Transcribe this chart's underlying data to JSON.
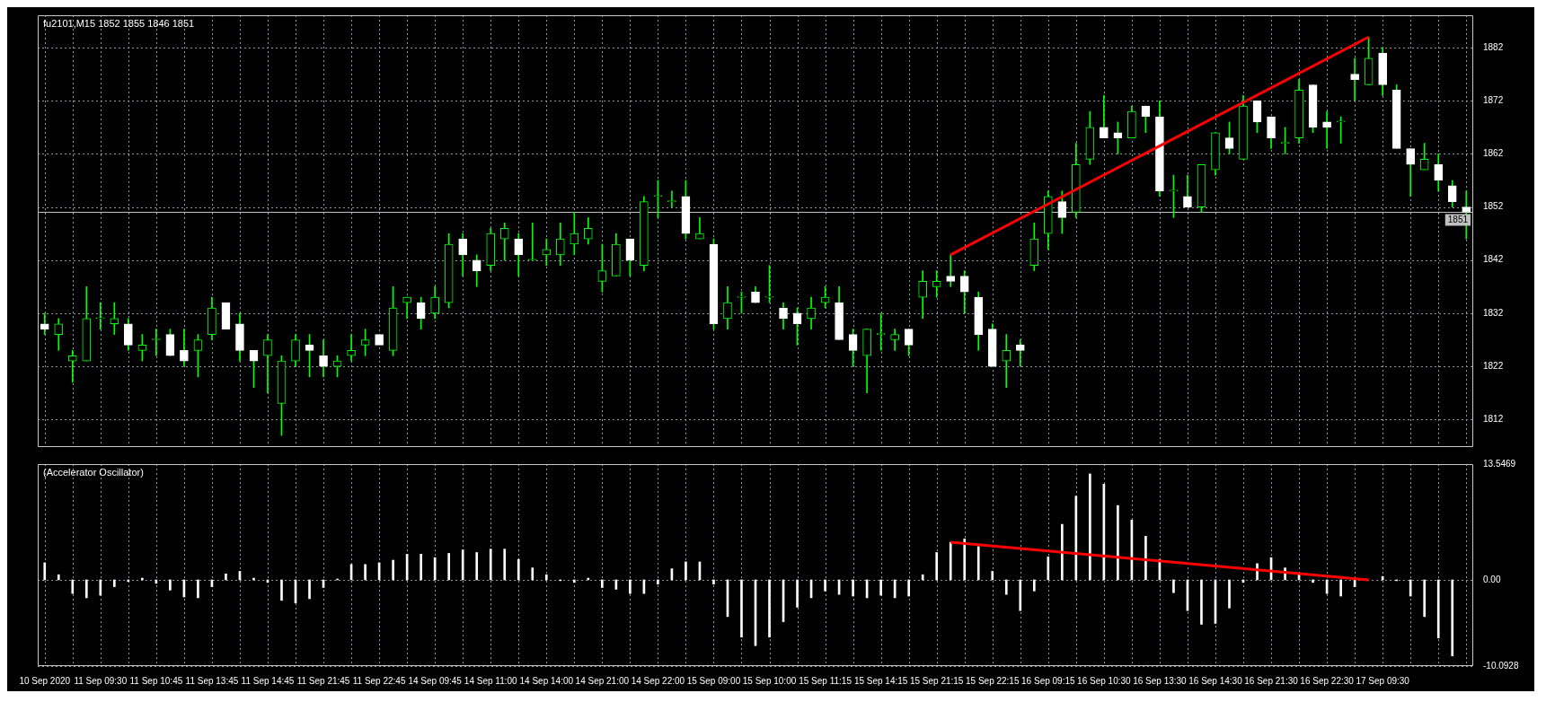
{
  "chart_data": [
    {
      "type": "candlestick",
      "title": "fu2101,M15 1852 1855 1846 1851",
      "tick_labels": "y",
      "grid": true,
      "color": "#00ff00",
      "ohlc": [
        [
          1830,
          1832,
          1828,
          1829
        ],
        [
          1828,
          1831,
          1825,
          1830
        ],
        [
          1823,
          1825,
          1819,
          1824
        ],
        [
          1823,
          1837,
          1823,
          1831
        ],
        [
          1831,
          1834,
          1829,
          1831
        ],
        [
          1830,
          1834,
          1828,
          1831
        ],
        [
          1830,
          1831,
          1825,
          1826
        ],
        [
          1825,
          1828,
          1823,
          1826
        ],
        [
          1827,
          1829,
          1824,
          1827
        ],
        [
          1828,
          1829,
          1824,
          1824
        ],
        [
          1825,
          1829,
          1822,
          1823
        ],
        [
          1825,
          1828,
          1820,
          1827
        ],
        [
          1828,
          1835,
          1827,
          1833
        ],
        [
          1834,
          1834,
          1829,
          1829
        ],
        [
          1830,
          1832,
          1823,
          1825
        ],
        [
          1825,
          1825,
          1818,
          1823
        ],
        [
          1824,
          1828,
          1817,
          1827
        ],
        [
          1815,
          1824,
          1809,
          1823
        ],
        [
          1823,
          1828,
          1822,
          1827
        ],
        [
          1826,
          1828,
          1820,
          1825
        ],
        [
          1824,
          1827,
          1820,
          1822
        ],
        [
          1822,
          1824,
          1820,
          1823
        ],
        [
          1824,
          1828,
          1823,
          1825
        ],
        [
          1826,
          1829,
          1824,
          1827
        ],
        [
          1828,
          1828,
          1826,
          1826
        ],
        [
          1825,
          1837,
          1824,
          1833
        ],
        [
          1834,
          1835,
          1831,
          1835
        ],
        [
          1834,
          1835,
          1829,
          1831
        ],
        [
          1832,
          1837,
          1831,
          1835
        ],
        [
          1834,
          1847,
          1833,
          1845
        ],
        [
          1846,
          1847,
          1839,
          1843
        ],
        [
          1842,
          1843,
          1837,
          1840
        ],
        [
          1841,
          1848,
          1840,
          1847
        ],
        [
          1846,
          1849,
          1842,
          1848
        ],
        [
          1846,
          1847,
          1839,
          1843
        ],
        [
          1842,
          1849,
          1842,
          1842
        ],
        [
          1843,
          1846,
          1841,
          1844
        ],
        [
          1843,
          1849,
          1841,
          1846
        ],
        [
          1845,
          1851,
          1843,
          1847
        ],
        [
          1846,
          1850,
          1845,
          1848
        ],
        [
          1838,
          1845,
          1836,
          1840
        ],
        [
          1839,
          1847,
          1839,
          1845
        ],
        [
          1846,
          1846,
          1839,
          1842
        ],
        [
          1841,
          1854,
          1840,
          1853
        ],
        [
          1854,
          1857,
          1850,
          1854
        ],
        [
          1853,
          1855,
          1852,
          1853
        ],
        [
          1854,
          1857,
          1846,
          1847
        ],
        [
          1846,
          1850,
          1846,
          1847
        ],
        [
          1845,
          1846,
          1829,
          1830
        ],
        [
          1831,
          1837,
          1829,
          1834
        ],
        [
          1835,
          1836,
          1832,
          1835
        ],
        [
          1836,
          1837,
          1834,
          1834
        ],
        [
          1835,
          1841,
          1834,
          1835
        ],
        [
          1833,
          1834,
          1829,
          1831
        ],
        [
          1832,
          1833,
          1826,
          1830
        ],
        [
          1831,
          1835,
          1829,
          1833
        ],
        [
          1834,
          1837,
          1833,
          1835
        ],
        [
          1834,
          1837,
          1827,
          1827
        ],
        [
          1828,
          1829,
          1822,
          1825
        ],
        [
          1824,
          1829,
          1817,
          1829
        ],
        [
          1828,
          1832,
          1825,
          1828
        ],
        [
          1827,
          1829,
          1825,
          1828
        ],
        [
          1829,
          1829,
          1824,
          1826
        ],
        [
          1835,
          1840,
          1831,
          1838
        ],
        [
          1837,
          1840,
          1835,
          1838
        ],
        [
          1839,
          1843,
          1837,
          1838
        ],
        [
          1839,
          1840,
          1832,
          1836
        ],
        [
          1835,
          1836,
          1825,
          1828
        ],
        [
          1829,
          1830,
          1822,
          1822
        ],
        [
          1823,
          1828,
          1818,
          1825
        ],
        [
          1826,
          1827,
          1822,
          1825
        ],
        [
          1841,
          1849,
          1840,
          1846
        ],
        [
          1847,
          1855,
          1844,
          1854
        ],
        [
          1853,
          1855,
          1847,
          1850
        ],
        [
          1851,
          1864,
          1850,
          1860
        ],
        [
          1861,
          1870,
          1860,
          1867
        ],
        [
          1867,
          1873,
          1865,
          1865
        ],
        [
          1866,
          1868,
          1862,
          1865
        ],
        [
          1865,
          1871,
          1865,
          1870
        ],
        [
          1871,
          1871,
          1866,
          1869
        ],
        [
          1869,
          1872,
          1854,
          1855
        ],
        [
          1855,
          1858,
          1850,
          1855
        ],
        [
          1854,
          1858,
          1852,
          1852
        ],
        [
          1852,
          1860,
          1851,
          1860
        ],
        [
          1859,
          1866,
          1858,
          1866
        ],
        [
          1865,
          1868,
          1862,
          1863
        ],
        [
          1861,
          1873,
          1861,
          1871
        ],
        [
          1872,
          1872,
          1866,
          1868
        ],
        [
          1869,
          1869,
          1863,
          1865
        ],
        [
          1864,
          1867,
          1862,
          1864
        ],
        [
          1865,
          1876,
          1864,
          1874
        ],
        [
          1875,
          1875,
          1866,
          1867
        ],
        [
          1868,
          1870,
          1863,
          1867
        ],
        [
          1868,
          1869,
          1864,
          1868
        ],
        [
          1877,
          1880,
          1872,
          1876
        ],
        [
          1875,
          1884,
          1875,
          1880
        ],
        [
          1881,
          1882,
          1873,
          1875
        ],
        [
          1874,
          1875,
          1863,
          1863
        ],
        [
          1863,
          1863,
          1854,
          1860
        ],
        [
          1859,
          1864,
          1859,
          1861
        ],
        [
          1860,
          1862,
          1855,
          1857
        ],
        [
          1856,
          1857,
          1852,
          1853
        ],
        [
          1852,
          1855,
          1846,
          1851
        ]
      ],
      "colors": [
        "#ffffff",
        "#00ff00",
        "#00ff00",
        "#00ff00",
        "#00ff00",
        "#00ff00",
        "#ffffff",
        "#00ff00",
        "#00ff00",
        "#ffffff",
        "#ffffff",
        "#00ff00",
        "#00ff00",
        "#ffffff",
        "#ffffff",
        "#ffffff",
        "#00ff00",
        "#00ff00",
        "#00ff00",
        "#ffffff",
        "#ffffff",
        "#00ff00",
        "#00ff00",
        "#00ff00",
        "#ffffff",
        "#00ff00",
        "#00ff00",
        "#ffffff",
        "#00ff00",
        "#00ff00",
        "#ffffff",
        "#ffffff",
        "#00ff00",
        "#00ff00",
        "#ffffff",
        "#00ff00",
        "#00ff00",
        "#00ff00",
        "#00ff00",
        "#00ff00",
        "#00ff00",
        "#00ff00",
        "#ffffff",
        "#00ff00",
        "#00ff00",
        "#00ff00",
        "#ffffff",
        "#00ff00",
        "#ffffff",
        "#00ff00",
        "#00ff00",
        "#ffffff",
        "#00ff00",
        "#ffffff",
        "#ffffff",
        "#00ff00",
        "#00ff00",
        "#ffffff",
        "#ffffff",
        "#00ff00",
        "#00ff00",
        "#00ff00",
        "#ffffff",
        "#00ff00",
        "#00ff00",
        "#ffffff",
        "#ffffff",
        "#ffffff",
        "#ffffff",
        "#00ff00",
        "#ffffff",
        "#00ff00",
        "#00ff00",
        "#ffffff",
        "#00ff00",
        "#00ff00",
        "#ffffff",
        "#ffffff",
        "#00ff00",
        "#ffffff",
        "#ffffff",
        "#00ff00",
        "#ffffff",
        "#00ff00",
        "#00ff00",
        "#ffffff",
        "#00ff00",
        "#ffffff",
        "#ffffff",
        "#00ff00",
        "#00ff00",
        "#ffffff",
        "#ffffff",
        "#00ff00",
        "#ffffff",
        "#00ff00",
        "#ffffff",
        "#ffffff",
        "#ffffff",
        "#00ff00",
        "#ffffff",
        "#ffffff",
        "#ffffff"
      ],
      "series": [
        {
          "type": "line",
          "color": "#ff0000",
          "values": [
            null,
            null,
            null,
            null,
            null,
            null,
            null,
            null,
            null,
            null,
            null,
            null,
            null,
            null,
            null,
            null,
            null,
            null,
            null,
            null,
            null,
            null,
            null,
            null,
            null,
            null,
            null,
            null,
            null,
            null,
            null,
            null,
            null,
            null,
            null,
            null,
            null,
            null,
            null,
            null,
            null,
            null,
            null,
            null,
            null,
            null,
            null,
            null,
            null,
            null,
            null,
            null,
            null,
            null,
            null,
            null,
            null,
            null,
            null,
            null,
            null,
            null,
            null,
            null,
            null,
            1843,
            null,
            null,
            null,
            null,
            null,
            null,
            null,
            null,
            null,
            null,
            null,
            null,
            null,
            null,
            null,
            null,
            null,
            null,
            null,
            null,
            null,
            null,
            null,
            null,
            null,
            null,
            null,
            null,
            null,
            1884,
            null,
            null,
            null,
            null,
            null,
            null,
            null
          ]
        }
      ],
      "ylim": [
        1806.8,
        1888.1
      ],
      "yticks": [
        1812,
        1822,
        1832,
        1842,
        1852,
        1862,
        1872,
        1882
      ],
      "ref_lines": [
        {
          "axis": "y",
          "value": 1851,
          "label": "1851",
          "color": "#c0c0c0"
        }
      ]
    },
    {
      "type": "bar",
      "title": "(Accelerator Oscillator)",
      "grid": true,
      "categories": [
        "10 Sep 2020",
        null,
        null,
        null,
        "11 Sep 09:30",
        null,
        null,
        null,
        "11 Sep 10:45",
        null,
        null,
        null,
        "11 Sep 13:45",
        null,
        null,
        null,
        "11 Sep 14:45",
        null,
        null,
        null,
        "11 Sep 21:45",
        null,
        null,
        null,
        "11 Sep 22:45",
        null,
        null,
        null,
        "14 Sep 09:45",
        null,
        null,
        null,
        "14 Sep 11:00",
        null,
        null,
        null,
        "14 Sep 14:00",
        null,
        null,
        null,
        "14 Sep 21:00",
        null,
        null,
        null,
        "14 Sep 22:00",
        null,
        null,
        null,
        "15 Sep 09:00",
        null,
        null,
        null,
        "15 Sep 10:00",
        null,
        null,
        null,
        "15 Sep 11:15",
        null,
        null,
        null,
        "15 Sep 14:15",
        null,
        null,
        null,
        "15 Sep 21:15",
        null,
        null,
        null,
        "15 Sep 22:15",
        null,
        null,
        null,
        "16 Sep 09:15",
        null,
        null,
        null,
        "16 Sep 10:30",
        null,
        null,
        null,
        "16 Sep 13:30",
        null,
        null,
        null,
        "16 Sep 14:30",
        null,
        null,
        null,
        "16 Sep 21:30",
        null,
        null,
        null,
        "16 Sep 22:30",
        null,
        null,
        null,
        "17 Sep 09:30",
        null,
        null,
        null,
        null,
        null,
        null
      ],
      "series": [
        {
          "type": "bar",
          "color": "#ffffff",
          "values": [
            2.0,
            0.6,
            -1.6,
            -2.1,
            -1.8,
            -0.8,
            -0.2,
            0.2,
            -0.4,
            -1.2,
            -2.0,
            -2.1,
            -0.8,
            0.7,
            1.0,
            0.2,
            -0.3,
            -2.4,
            -2.7,
            -2.2,
            -0.9,
            0.1,
            1.8,
            1.8,
            2.0,
            2.3,
            3.0,
            3.0,
            2.6,
            3.1,
            3.5,
            3.2,
            3.6,
            3.6,
            2.4,
            1.4,
            0.6,
            -0.1,
            -0.3,
            0.2,
            -0.9,
            -1.1,
            -1.6,
            -1.6,
            -0.5,
            1.3,
            2.1,
            2.1,
            -0.5,
            -4.3,
            -6.7,
            -7.7,
            -6.7,
            -4.9,
            -3.2,
            -2.1,
            -1.3,
            -1.7,
            -1.9,
            -2.1,
            -1.8,
            -2.1,
            -1.9,
            0.6,
            3.2,
            4.4,
            4.8,
            3.9,
            1.0,
            -1.7,
            -3.6,
            -1.3,
            2.7,
            6.5,
            9.8,
            12.4,
            11.2,
            8.7,
            7.0,
            5.1,
            2.4,
            -1.5,
            -3.6,
            -5.2,
            -5.1,
            -3.3,
            -0.3,
            1.9,
            2.6,
            1.4,
            0.6,
            -0.3,
            -1.6,
            -1.9,
            -0.8,
            null,
            0.4,
            -0.1,
            -1.9,
            -4.3,
            -6.8,
            -8.9,
            null
          ]
        },
        {
          "type": "line",
          "color": "#ff0000",
          "values": [
            null,
            null,
            null,
            null,
            null,
            null,
            null,
            null,
            null,
            null,
            null,
            null,
            null,
            null,
            null,
            null,
            null,
            null,
            null,
            null,
            null,
            null,
            null,
            null,
            null,
            null,
            null,
            null,
            null,
            null,
            null,
            null,
            null,
            null,
            null,
            null,
            null,
            null,
            null,
            null,
            null,
            null,
            null,
            null,
            null,
            null,
            null,
            null,
            null,
            null,
            null,
            null,
            null,
            null,
            null,
            null,
            null,
            null,
            null,
            null,
            null,
            null,
            null,
            null,
            null,
            4.4,
            null,
            null,
            null,
            null,
            null,
            null,
            null,
            null,
            null,
            null,
            null,
            null,
            null,
            null,
            null,
            null,
            null,
            null,
            null,
            null,
            null,
            null,
            null,
            null,
            null,
            null,
            null,
            null,
            null,
            0,
            null,
            null,
            null,
            null,
            null,
            null,
            null
          ]
        }
      ],
      "ylim": [
        -10.0928,
        13.5469
      ],
      "yticks": [
        {
          "value": 13.5469,
          "label": "13.5469"
        },
        {
          "value": 0,
          "label": "0.00"
        },
        {
          "value": -10.0928,
          "label": "-10.0928"
        }
      ]
    }
  ]
}
